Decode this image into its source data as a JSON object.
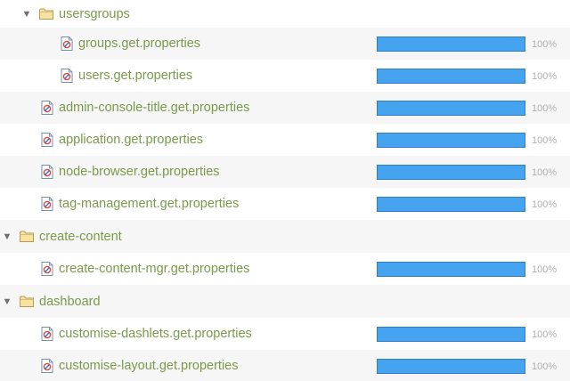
{
  "tree": {
    "rows": [
      {
        "kind": "folder",
        "expanded": true,
        "label": "usersgroups"
      },
      {
        "kind": "file",
        "label": "groups.get.properties",
        "progress": 1.0,
        "percent_label": "100%"
      },
      {
        "kind": "file",
        "label": "users.get.properties",
        "progress": 1.0,
        "percent_label": "100%"
      },
      {
        "kind": "file",
        "label": "admin-console-title.get.properties",
        "progress": 1.0,
        "percent_label": "100%"
      },
      {
        "kind": "file",
        "label": "application.get.properties",
        "progress": 1.0,
        "percent_label": "100%"
      },
      {
        "kind": "file",
        "label": "node-browser.get.properties",
        "progress": 1.0,
        "percent_label": "100%"
      },
      {
        "kind": "file",
        "label": "tag-management.get.properties",
        "progress": 1.0,
        "percent_label": "100%"
      },
      {
        "kind": "folder",
        "expanded": true,
        "label": "create-content"
      },
      {
        "kind": "file",
        "label": "create-content-mgr.get.properties",
        "progress": 1.0,
        "percent_label": "100%"
      },
      {
        "kind": "folder",
        "expanded": true,
        "label": "dashboard"
      },
      {
        "kind": "file",
        "label": "customise-dashlets.get.properties",
        "progress": 1.0,
        "percent_label": "100%"
      },
      {
        "kind": "file",
        "label": "customise-layout.get.properties",
        "progress": 1.0,
        "percent_label": "100%"
      }
    ]
  },
  "icons": {
    "toggle": "triangle-down-icon",
    "folder": "folder-icon",
    "file": "properties-file-icon"
  },
  "colors": {
    "label": "#7a9a4a",
    "bar_fill": "#46a3f0",
    "bar_border": "#2f7fc7",
    "percent": "#b0b0b0",
    "row_stripe": "#f6f6f6"
  }
}
